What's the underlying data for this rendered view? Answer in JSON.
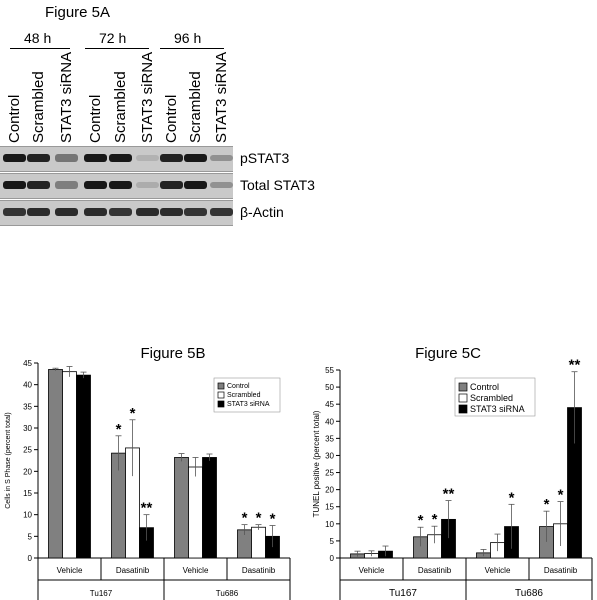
{
  "figure_5a": {
    "title": "Figure 5A",
    "timepoints": [
      "48 h",
      "72 h",
      "96 h"
    ],
    "lanes": [
      "Control",
      "Scrambled",
      "STAT3 siRNA",
      "Control",
      "Scrambled",
      "STAT3 siRNA",
      "Control",
      "Scrambled",
      "STAT3 siRNA"
    ],
    "blots": [
      {
        "label": "pSTAT3",
        "intensity": [
          0.95,
          0.9,
          0.45,
          0.95,
          0.95,
          0.12,
          0.9,
          0.95,
          0.3
        ]
      },
      {
        "label": "Total STAT3",
        "intensity": [
          0.95,
          0.9,
          0.4,
          0.95,
          0.95,
          0.15,
          0.9,
          0.95,
          0.3
        ]
      },
      {
        "label": "β-Actin",
        "intensity": [
          0.8,
          0.85,
          0.85,
          0.85,
          0.8,
          0.85,
          0.85,
          0.8,
          0.8
        ]
      }
    ]
  },
  "chart_data": [
    {
      "type": "bar",
      "title": "Figure 5B",
      "ylabel": "Cells in S Phase (percent total)",
      "ylim": [
        0,
        45
      ],
      "yticks": [
        0,
        5,
        10,
        15,
        20,
        25,
        30,
        35,
        40,
        45
      ],
      "categories": [
        "Vehicle",
        "Dasatinib",
        "Vehicle",
        "Dasatinib"
      ],
      "groups": [
        {
          "label": "Tu167",
          "span": [
            0,
            1
          ]
        },
        {
          "label": "Tu686",
          "span": [
            2,
            3
          ]
        }
      ],
      "legend": "right",
      "colors": [
        "#808080",
        "#ffffff",
        "#000000"
      ],
      "series": [
        {
          "name": "Control",
          "values": [
            43.5,
            24.2,
            23.2,
            6.5
          ],
          "errors": [
            0.3,
            4.0,
            0.9,
            1.2
          ],
          "marks": [
            "",
            "*",
            "",
            "*"
          ]
        },
        {
          "name": "Scrambled",
          "values": [
            43.0,
            25.4,
            21.0,
            7.1
          ],
          "errors": [
            1.2,
            6.5,
            2.2,
            0.6
          ],
          "marks": [
            "",
            "*",
            "",
            "*"
          ]
        },
        {
          "name": "STAT3 siRNA",
          "values": [
            42.2,
            7.0,
            23.2,
            5.0
          ],
          "errors": [
            0.7,
            3.0,
            0.8,
            2.5
          ],
          "marks": [
            "",
            "**",
            "",
            "*"
          ]
        }
      ]
    },
    {
      "type": "bar",
      "title": "Figure 5C",
      "ylabel": "TUNEL positive (percent total)",
      "ylim": [
        0,
        55
      ],
      "yticks": [
        0,
        5,
        10,
        15,
        20,
        25,
        30,
        35,
        40,
        45,
        50,
        55
      ],
      "categories": [
        "Vehicle",
        "Dasatinib",
        "Vehicle",
        "Dasatinib"
      ],
      "groups": [
        {
          "label": "Tu167",
          "span": [
            0,
            1
          ]
        },
        {
          "label": "Tu686",
          "span": [
            2,
            3
          ]
        }
      ],
      "legend": "top-left",
      "colors": [
        "#808080",
        "#ffffff",
        "#000000"
      ],
      "series": [
        {
          "name": "Control",
          "values": [
            1.2,
            6.2,
            1.5,
            9.2
          ],
          "errors": [
            0.8,
            2.8,
            1.0,
            4.5
          ],
          "marks": [
            "",
            "*",
            "",
            "*"
          ]
        },
        {
          "name": "Scrambled",
          "values": [
            1.3,
            6.8,
            4.5,
            10.0
          ],
          "errors": [
            0.8,
            2.5,
            2.5,
            6.5
          ],
          "marks": [
            "",
            "*",
            "",
            "*"
          ]
        },
        {
          "name": "STAT3 siRNA",
          "values": [
            2.0,
            11.3,
            9.2,
            44.0
          ],
          "errors": [
            1.5,
            5.5,
            6.5,
            10.5
          ],
          "marks": [
            "",
            "**",
            "*",
            "**"
          ]
        }
      ]
    }
  ]
}
